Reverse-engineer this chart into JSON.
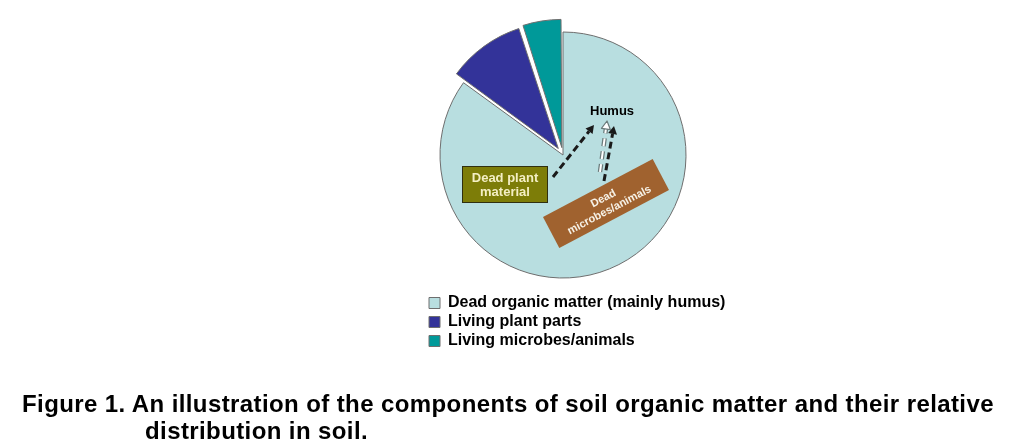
{
  "chart_data": {
    "type": "pie",
    "categories": [
      "Dead organic matter (mainly humus)",
      "Living plant parts",
      "Living microbes/animals"
    ],
    "values": [
      85,
      10,
      5
    ],
    "colors": [
      "#b8dee0",
      "#333399",
      "#009999"
    ],
    "legend": "bottom",
    "annotations": [
      "Humus",
      "Dead plant material",
      "Dead microbes/animals",
      "Figure 1. An illustration of the components of soil organic matter and their relative distribution in soil."
    ]
  }
}
